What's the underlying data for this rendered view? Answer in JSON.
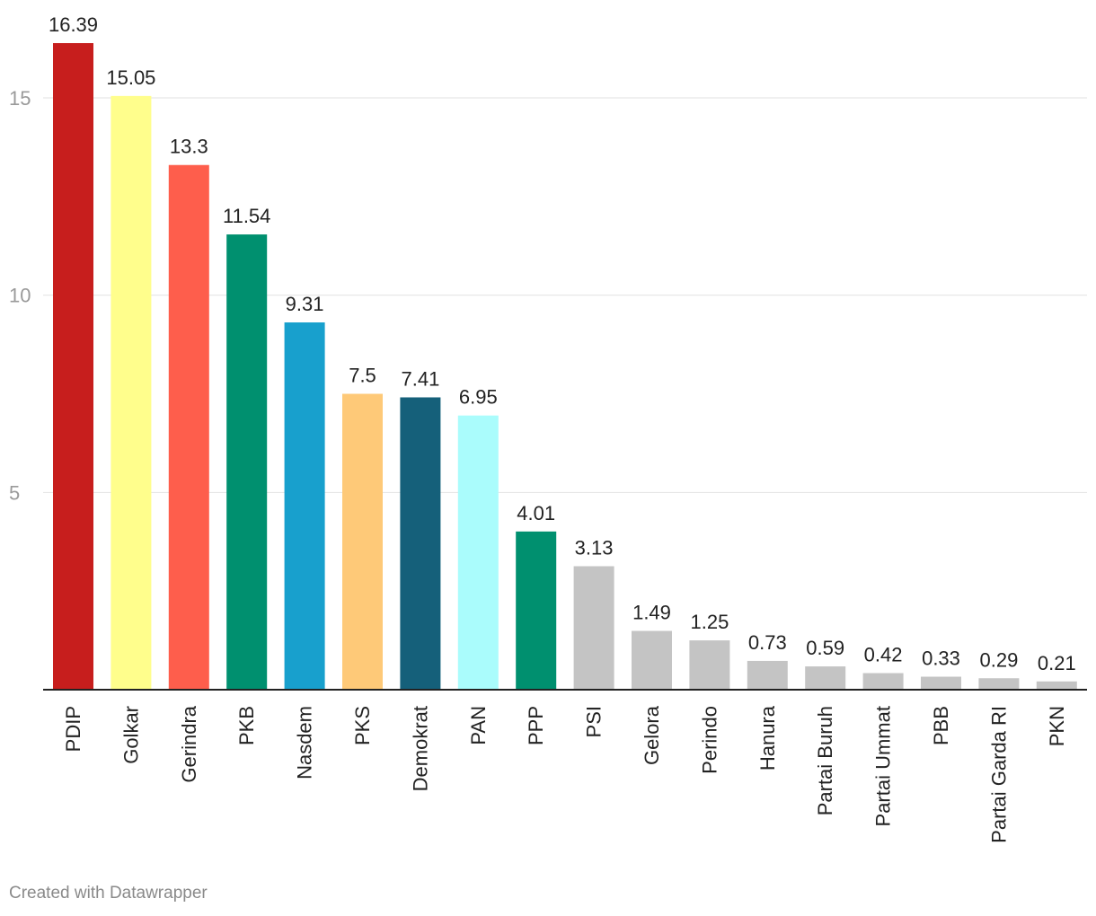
{
  "chart_data": {
    "type": "bar",
    "categories": [
      "PDIP",
      "Golkar",
      "Gerindra",
      "PKB",
      "Nasdem",
      "PKS",
      "Demokrat",
      "PAN",
      "PPP",
      "PSI",
      "Gelora",
      "Perindo",
      "Hanura",
      "Partai Buruh",
      "Partai Ummat",
      "PBB",
      "Partai Garda RI",
      "PKN"
    ],
    "values": [
      16.39,
      15.05,
      13.3,
      11.54,
      9.31,
      7.5,
      7.41,
      6.95,
      4.01,
      3.13,
      1.49,
      1.25,
      0.73,
      0.59,
      0.42,
      0.33,
      0.29,
      0.21
    ],
    "value_labels": [
      "16.39",
      "15.05",
      "13.3",
      "11.54",
      "9.31",
      "7.5",
      "7.41",
      "6.95",
      "4.01",
      "3.13",
      "1.49",
      "1.25",
      "0.73",
      "0.59",
      "0.42",
      "0.33",
      "0.29",
      "0.21"
    ],
    "colors": [
      "#c71e1d",
      "#fffe8c",
      "#fe5e4c",
      "#00906f",
      "#18a0cd",
      "#fec978",
      "#15607a",
      "#aafcfc",
      "#00906f",
      "#c4c4c4",
      "#c4c4c4",
      "#c4c4c4",
      "#c4c4c4",
      "#c4c4c4",
      "#c4c4c4",
      "#c4c4c4",
      "#c4c4c4",
      "#c4c4c4"
    ],
    "title": "",
    "xlabel": "",
    "ylabel": "",
    "ylim": [
      0,
      16.39
    ],
    "yticks": [
      "5",
      "10",
      "15"
    ],
    "grid": true,
    "legend": "none"
  },
  "footer": {
    "credit": "Created with Datawrapper"
  }
}
